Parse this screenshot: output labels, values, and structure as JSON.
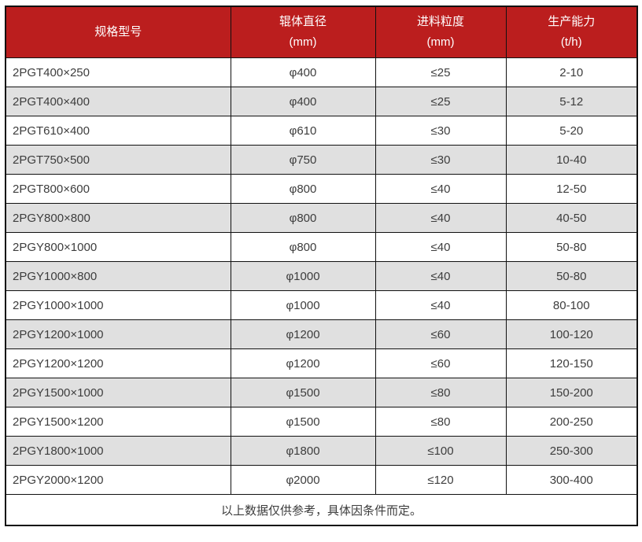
{
  "table": {
    "headers": [
      {
        "title": "规格型号",
        "unit": ""
      },
      {
        "title": "辊体直径",
        "unit": "(mm)"
      },
      {
        "title": "进料粒度",
        "unit": "(mm)"
      },
      {
        "title": "生产能力",
        "unit": "(t/h)"
      }
    ],
    "rows": [
      {
        "model": "2PGT400×250",
        "roller_diameter": "φ400",
        "feed_size": "≤25",
        "capacity": "2-10"
      },
      {
        "model": "2PGT400×400",
        "roller_diameter": "φ400",
        "feed_size": "≤25",
        "capacity": "5-12"
      },
      {
        "model": "2PGT610×400",
        "roller_diameter": "φ610",
        "feed_size": "≤30",
        "capacity": "5-20"
      },
      {
        "model": "2PGT750×500",
        "roller_diameter": "φ750",
        "feed_size": "≤30",
        "capacity": "10-40"
      },
      {
        "model": "2PGT800×600",
        "roller_diameter": "φ800",
        "feed_size": "≤40",
        "capacity": "12-50"
      },
      {
        "model": "2PGY800×800",
        "roller_diameter": "φ800",
        "feed_size": "≤40",
        "capacity": "40-50"
      },
      {
        "model": "2PGY800×1000",
        "roller_diameter": "φ800",
        "feed_size": "≤40",
        "capacity": "50-80"
      },
      {
        "model": "2PGY1000×800",
        "roller_diameter": "φ1000",
        "feed_size": "≤40",
        "capacity": "50-80"
      },
      {
        "model": "2PGY1000×1000",
        "roller_diameter": "φ1000",
        "feed_size": "≤40",
        "capacity": "80-100"
      },
      {
        "model": "2PGY1200×1000",
        "roller_diameter": "φ1200",
        "feed_size": "≤60",
        "capacity": "100-120"
      },
      {
        "model": "2PGY1200×1200",
        "roller_diameter": "φ1200",
        "feed_size": "≤60",
        "capacity": "120-150"
      },
      {
        "model": "2PGY1500×1000",
        "roller_diameter": "φ1500",
        "feed_size": "≤80",
        "capacity": "150-200"
      },
      {
        "model": "2PGY1500×1200",
        "roller_diameter": "φ1500",
        "feed_size": "≤80",
        "capacity": "200-250"
      },
      {
        "model": "2PGY1800×1000",
        "roller_diameter": "φ1800",
        "feed_size": "≤100",
        "capacity": "250-300"
      },
      {
        "model": "2PGY2000×1200",
        "roller_diameter": "φ2000",
        "feed_size": "≤120",
        "capacity": "300-400"
      }
    ],
    "footer_note": "以上数据仅供参考，具体因条件而定。"
  },
  "colors": {
    "header_bg": "#bb1e1e",
    "header_text": "#ffffff",
    "row_alt_bg": "#e0e0e0",
    "border": "#111111",
    "text": "#3d3d3d"
  }
}
